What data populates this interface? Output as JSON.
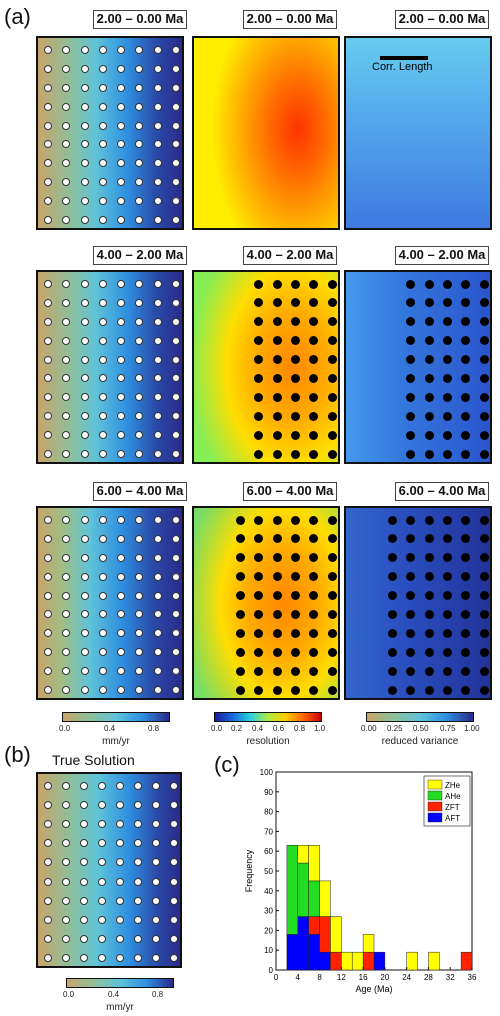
{
  "panel_labels": {
    "a": "(a)",
    "b": "(b)",
    "c": "(c)"
  },
  "time_windows": [
    {
      "start": "2.00",
      "end": "0.00 Ma"
    },
    {
      "start": "4.00",
      "end": "2.00 Ma"
    },
    {
      "start": "6.00",
      "end": "4.00 Ma"
    }
  ],
  "dash": "–",
  "corr_length_label": "Corr. Length",
  "true_solution_title": "True Solution",
  "colorbars": {
    "rate": {
      "ticks": [
        "0.0",
        "0.4",
        "0.8"
      ],
      "unit": "mm/yr"
    },
    "resolution": {
      "ticks": [
        "0.0",
        "0.2",
        "0.4",
        "0.6",
        "0.8",
        "1.0"
      ],
      "unit": "resolution"
    },
    "variance": {
      "ticks": [
        "0.00",
        "0.25",
        "0.50",
        "0.75",
        "1.00"
      ],
      "unit": "reduced variance"
    },
    "true_rate": {
      "ticks": [
        "0.0",
        "0.4",
        "0.8"
      ],
      "unit": "mm/yr"
    }
  },
  "colors": {
    "rate_low": "#c8a56a",
    "rate_mid": "#5fc3d8",
    "rate_high": "#2a2a8c",
    "zhe": "#ffff00",
    "ahe": "#22dd22",
    "zft": "#ff2200",
    "aft": "#0000ff"
  },
  "chart_data": {
    "type": "bar",
    "stacked": true,
    "xlabel": "Age (Ma)",
    "ylabel": "Frequency",
    "xlim": [
      0,
      36
    ],
    "ylim": [
      0,
      100
    ],
    "xticks": [
      0,
      4,
      8,
      12,
      16,
      20,
      24,
      28,
      32,
      36
    ],
    "yticks": [
      0,
      10,
      20,
      30,
      40,
      50,
      60,
      70,
      80,
      90,
      100
    ],
    "bin_width": 2,
    "bin_starts": [
      2,
      4,
      6,
      8,
      10,
      12,
      14,
      16,
      18,
      20,
      22,
      24,
      26,
      28,
      30,
      32,
      34
    ],
    "legend_position": "top-right",
    "series": [
      {
        "name": "AFT",
        "values": [
          18,
          27,
          18,
          9,
          0,
          0,
          0,
          0,
          9,
          0,
          0,
          0,
          0,
          0,
          0,
          0,
          0
        ]
      },
      {
        "name": "ZFT",
        "values": [
          0,
          0,
          9,
          18,
          9,
          0,
          0,
          9,
          0,
          0,
          0,
          0,
          0,
          0,
          0,
          0,
          9
        ]
      },
      {
        "name": "AHe",
        "values": [
          45,
          27,
          18,
          0,
          0,
          0,
          0,
          0,
          0,
          0,
          0,
          0,
          0,
          0,
          0,
          0,
          0
        ]
      },
      {
        "name": "ZHe",
        "values": [
          0,
          9,
          18,
          18,
          18,
          9,
          9,
          9,
          0,
          0,
          0,
          9,
          0,
          9,
          0,
          0,
          0
        ]
      }
    ]
  }
}
